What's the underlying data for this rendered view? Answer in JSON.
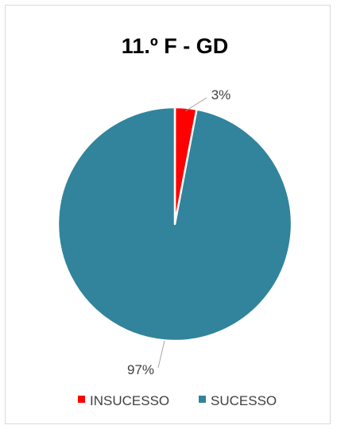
{
  "chart_data": {
    "type": "pie",
    "title": "11.º F - GD",
    "categories": [
      "INSUCESSO",
      "SUCESSO"
    ],
    "values": [
      3,
      97
    ],
    "data_labels": [
      "3%",
      "97%"
    ],
    "colors": [
      "#ff0000",
      "#31849b"
    ],
    "legend": {
      "position": "bottom",
      "entries": [
        "INSUCESSO",
        "SUCESSO"
      ]
    }
  }
}
